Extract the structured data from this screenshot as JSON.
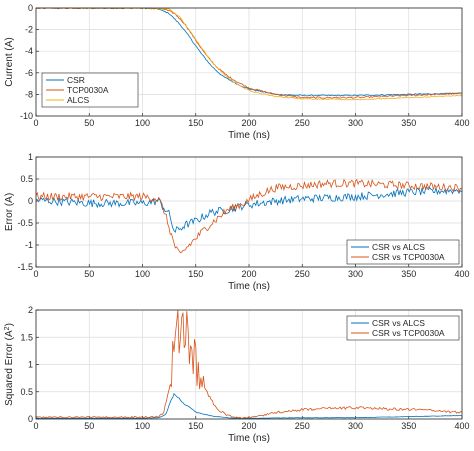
{
  "colors": {
    "blue": "#0072bd",
    "orange": "#d95319",
    "yellow": "#edb120",
    "grid": "#dcdcdc",
    "axis": "#262626"
  },
  "chart_data": [
    {
      "type": "line",
      "xlabel": "Time (ns)",
      "ylabel": "Current (A)",
      "xlim": [
        0,
        400
      ],
      "ylim": [
        -10,
        0
      ],
      "xticks": [
        "0",
        "50",
        "100",
        "150",
        "200",
        "250",
        "300",
        "350",
        "400"
      ],
      "yticks": [
        "0",
        "-2",
        "-4",
        "-6",
        "-8",
        "-10"
      ],
      "grid": true,
      "legend": "bottom-left",
      "series": [
        {
          "name": "CSR",
          "color": "blue",
          "x": [
            0,
            100,
            115,
            125,
            135,
            145,
            155,
            165,
            175,
            190,
            200,
            225,
            250,
            300,
            350,
            400
          ],
          "y": [
            0,
            0,
            -0.1,
            -0.5,
            -1.5,
            -2.8,
            -4.2,
            -5.4,
            -6.3,
            -7.1,
            -7.5,
            -8.0,
            -8.1,
            -8.1,
            -8.0,
            -7.9
          ]
        },
        {
          "name": "TCP0030A",
          "color": "orange",
          "x": [
            0,
            100,
            120,
            130,
            140,
            150,
            160,
            170,
            180,
            190,
            200,
            225,
            250,
            300,
            350,
            400
          ],
          "y": [
            0,
            0,
            -0.1,
            -0.5,
            -1.5,
            -3.0,
            -4.4,
            -5.5,
            -6.3,
            -6.9,
            -7.4,
            -8.0,
            -8.3,
            -8.3,
            -8.1,
            -7.9
          ]
        },
        {
          "name": "ALCS",
          "color": "yellow",
          "x": [
            0,
            100,
            125,
            135,
            145,
            155,
            165,
            175,
            185,
            195,
            205,
            225,
            250,
            300,
            350,
            400
          ],
          "y": [
            0,
            0,
            -0.1,
            -0.8,
            -2.2,
            -3.6,
            -5.0,
            -6.0,
            -6.8,
            -7.4,
            -7.8,
            -8.2,
            -8.4,
            -8.5,
            -8.3,
            -8.1
          ]
        }
      ]
    },
    {
      "type": "line",
      "xlabel": "Time (ns)",
      "ylabel": "Error (A)",
      "xlim": [
        0,
        400
      ],
      "ylim": [
        -1.5,
        1
      ],
      "xticks": [
        "0",
        "50",
        "100",
        "150",
        "200",
        "250",
        "300",
        "350",
        "400"
      ],
      "yticks": [
        "1",
        "0.5",
        "0",
        "-0.5",
        "-1",
        "-1.5"
      ],
      "grid": true,
      "legend": "bottom-right",
      "series": [
        {
          "name": "CSR vs ALCS",
          "color": "blue",
          "x": [
            0,
            50,
            100,
            115,
            125,
            130,
            140,
            150,
            165,
            180,
            195,
            210,
            225,
            250,
            300,
            350,
            400
          ],
          "y": [
            0.02,
            -0.05,
            -0.05,
            0.0,
            -0.3,
            -0.7,
            -0.55,
            -0.45,
            -0.25,
            -0.2,
            -0.1,
            -0.05,
            0.0,
            0.05,
            0.1,
            0.2,
            0.25
          ]
        },
        {
          "name": "CSR vs TCP0030A",
          "color": "orange",
          "x": [
            0,
            50,
            100,
            115,
            120,
            125,
            130,
            135,
            140,
            150,
            160,
            170,
            180,
            195,
            210,
            225,
            250,
            275,
            300,
            350,
            400
          ],
          "y": [
            0.1,
            0.1,
            0.1,
            0.05,
            -0.2,
            -0.6,
            -1.0,
            -1.25,
            -1.1,
            -0.85,
            -0.6,
            -0.4,
            -0.2,
            -0.05,
            0.15,
            0.3,
            0.35,
            0.4,
            0.4,
            0.35,
            0.3
          ]
        }
      ]
    },
    {
      "type": "line",
      "xlabel": "Time (ns)",
      "ylabel": "Squared Error (A²)",
      "ylabel_base": "Squared Error (A",
      "ylabel_sup": "2",
      "ylabel_end": ")",
      "xlim": [
        0,
        400
      ],
      "ylim": [
        0,
        2
      ],
      "xticks": [
        "0",
        "50",
        "100",
        "150",
        "200",
        "250",
        "300",
        "350",
        "400"
      ],
      "yticks": [
        "2",
        "1.5",
        "1",
        "0.5",
        "0"
      ],
      "grid": true,
      "legend": "top-right",
      "series": [
        {
          "name": "CSR vs ALCS",
          "color": "blue",
          "x": [
            0,
            100,
            115,
            122,
            126,
            130,
            135,
            140,
            145,
            150,
            160,
            170,
            180,
            190,
            200,
            250,
            300,
            350,
            400
          ],
          "y": [
            0.01,
            0.01,
            0.02,
            0.08,
            0.3,
            0.45,
            0.35,
            0.25,
            0.2,
            0.12,
            0.07,
            0.04,
            0.02,
            0.01,
            0.01,
            0.02,
            0.02,
            0.04,
            0.06
          ]
        },
        {
          "name": "CSR vs TCP0030A",
          "color": "orange",
          "x": [
            0,
            100,
            115,
            120,
            125,
            130,
            135,
            140,
            145,
            150,
            155,
            160,
            165,
            170,
            180,
            190,
            200,
            210,
            225,
            250,
            300,
            350,
            400
          ],
          "y": [
            0.02,
            0.02,
            0.03,
            0.1,
            0.5,
            1.1,
            1.6,
            1.5,
            1.2,
            0.9,
            0.6,
            0.45,
            0.3,
            0.15,
            0.05,
            0.01,
            0.01,
            0.04,
            0.1,
            0.15,
            0.18,
            0.15,
            0.1
          ]
        }
      ]
    }
  ]
}
